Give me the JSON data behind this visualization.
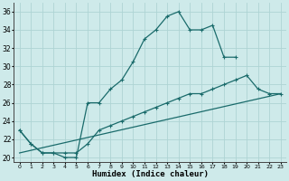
{
  "xlabel": "Humidex (Indice chaleur)",
  "bg_color": "#ceeaea",
  "grid_color": "#aed4d4",
  "line_color": "#1a6b6b",
  "xlim": [
    -0.5,
    23.5
  ],
  "ylim": [
    19.5,
    37
  ],
  "xticks": [
    0,
    1,
    2,
    3,
    4,
    5,
    6,
    7,
    8,
    9,
    10,
    11,
    12,
    13,
    14,
    15,
    16,
    17,
    18,
    19,
    20,
    21,
    22,
    23
  ],
  "yticks": [
    20,
    22,
    24,
    26,
    28,
    30,
    32,
    34,
    36
  ],
  "line1_x": [
    0,
    1,
    2,
    3,
    4,
    5,
    6,
    7,
    8,
    9,
    10,
    11,
    12,
    13,
    14,
    15,
    16,
    17,
    18,
    19
  ],
  "line1_y": [
    23,
    21.5,
    20.5,
    20.5,
    20,
    20,
    26,
    26,
    27.5,
    28.5,
    30.5,
    33,
    34,
    35.5,
    36,
    34,
    34,
    34.5,
    31,
    31
  ],
  "line2_x": [
    0,
    1,
    2,
    3,
    4,
    5,
    6,
    7,
    8,
    9,
    10,
    11,
    12,
    13,
    14,
    15,
    16,
    17,
    18,
    19,
    20,
    21,
    22,
    23
  ],
  "line2_y": [
    23,
    21.5,
    20.5,
    20.5,
    20.5,
    20.5,
    21.5,
    23,
    23.5,
    24,
    24.5,
    25,
    25.5,
    26,
    26.5,
    27,
    27,
    27.5,
    28,
    28.5,
    29,
    27.5,
    27,
    27
  ],
  "line3_x": [
    0,
    23
  ],
  "line3_y": [
    20.5,
    27
  ]
}
